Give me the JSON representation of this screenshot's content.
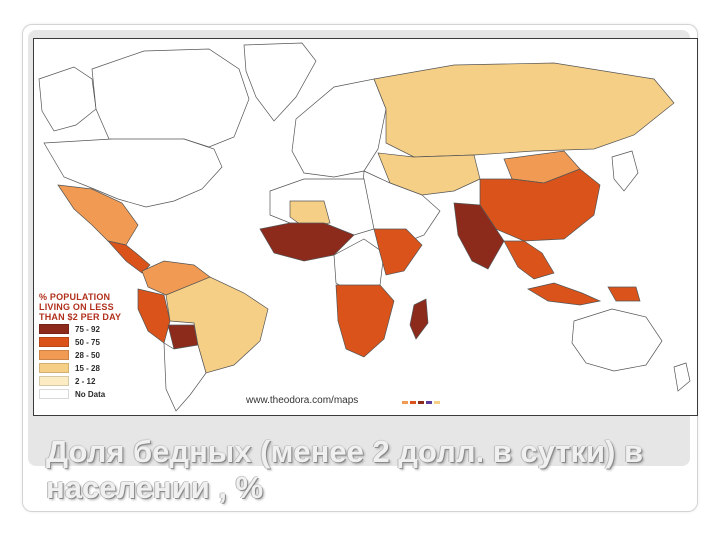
{
  "legend": {
    "title_lines": [
      "% POPULATION",
      "LIVING ON LESS",
      "THAN $2 PER DAY"
    ],
    "items": [
      {
        "label": "75 - 92",
        "color": "#8c2a1c"
      },
      {
        "label": "50 - 75",
        "color": "#d9531b"
      },
      {
        "label": "28 - 50",
        "color": "#f09a53"
      },
      {
        "label": "15 - 28",
        "color": "#f6cf86"
      },
      {
        "label": "2 - 12",
        "color": "#fbecc4"
      },
      {
        "label": "No Data",
        "color": "#ffffff"
      }
    ]
  },
  "source": "www.theodora.com/maps",
  "title": "Доля бедных (менее 2 долл. в сутки) в населении , %",
  "regions": [
    {
      "name": "canada",
      "color": "#ffffff"
    },
    {
      "name": "alaska",
      "color": "#ffffff"
    },
    {
      "name": "greenland",
      "color": "#ffffff"
    },
    {
      "name": "usa",
      "color": "#ffffff"
    },
    {
      "name": "mexico",
      "color": "#f09a53"
    },
    {
      "name": "central-america",
      "color": "#d9531b"
    },
    {
      "name": "colombia-venezuela",
      "color": "#f09a53"
    },
    {
      "name": "peru-ecuador",
      "color": "#d9531b"
    },
    {
      "name": "bolivia",
      "color": "#8c2a1c"
    },
    {
      "name": "brazil",
      "color": "#f6cf86"
    },
    {
      "name": "southern-cone",
      "color": "#ffffff"
    },
    {
      "name": "europe",
      "color": "#ffffff"
    },
    {
      "name": "russia",
      "color": "#f6cf86"
    },
    {
      "name": "kazakhstan-central-asia",
      "color": "#f6cf86"
    },
    {
      "name": "china",
      "color": "#d9531b"
    },
    {
      "name": "mongolia",
      "color": "#f09a53"
    },
    {
      "name": "middle-east",
      "color": "#ffffff"
    },
    {
      "name": "india",
      "color": "#8c2a1c"
    },
    {
      "name": "southeast-asia",
      "color": "#d9531b"
    },
    {
      "name": "indonesia",
      "color": "#d9531b"
    },
    {
      "name": "japan",
      "color": "#ffffff"
    },
    {
      "name": "north-africa",
      "color": "#ffffff"
    },
    {
      "name": "west-africa",
      "color": "#8c2a1c"
    },
    {
      "name": "sahel",
      "color": "#f6cf86"
    },
    {
      "name": "central-africa",
      "color": "#ffffff"
    },
    {
      "name": "east-africa",
      "color": "#d9531b"
    },
    {
      "name": "southern-africa",
      "color": "#d9531b"
    },
    {
      "name": "madagascar",
      "color": "#8c2a1c"
    },
    {
      "name": "australia",
      "color": "#ffffff"
    },
    {
      "name": "new-zealand",
      "color": "#ffffff"
    },
    {
      "name": "papua",
      "color": "#d9531b"
    }
  ]
}
